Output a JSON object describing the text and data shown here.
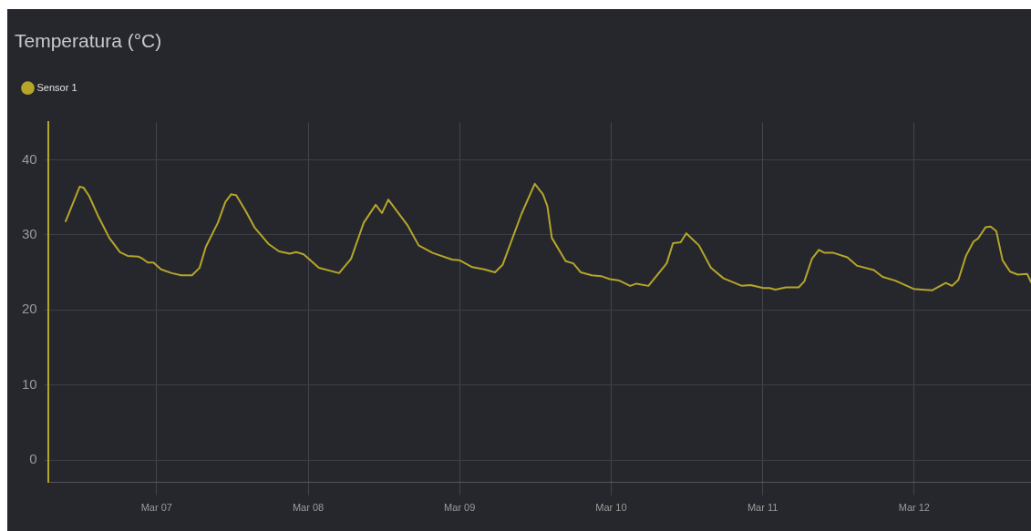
{
  "chart_data": {
    "type": "line",
    "title": "Temperatura (°C)",
    "x": [
      "--03-06T09:36",
      "--03-06T11:48",
      "--03-06T12:24",
      "--03-06T13:18",
      "--03-06T14:48",
      "--03-06T16:30",
      "--03-06T18:12",
      "--03-06T19:24",
      "--03-06T21:06",
      "--03-06T21:48",
      "--03-06T22:36",
      "--03-06T23:30",
      "--03-07T00:42",
      "--03-07T02:24",
      "--03-07T03:54",
      "--03-07T05:36",
      "--03-07T06:48",
      "--03-07T07:48",
      "--03-07T09:42",
      "--03-07T10:54",
      "--03-07T11:48",
      "--03-07T12:36",
      "--03-07T14:06",
      "--03-07T15:30",
      "--03-07T17:42",
      "--03-07T19:24",
      "--03-07T21:06",
      "--03-07T22:06",
      "--03-07T23:18",
      "--03-08T01:42",
      "--03-08T04:54",
      "--03-08T06:48",
      "--03-08T08:48",
      "--03-08T10:42",
      "--03-08T11:42",
      "--03-08T12:42",
      "--03-08T15:48",
      "--03-08T17:30",
      "--03-08T19:42",
      "--03-08T22:48",
      "--03-09T00:00",
      "--03-09T02:00",
      "--03-09T03:54",
      "--03-09T05:36",
      "--03-09T06:48",
      "--03-09T09:48",
      "--03-09T11:54",
      "--03-09T13:12",
      "--03-09T13:54",
      "--03-09T14:36",
      "--03-09T16:48",
      "--03-09T18:00",
      "--03-09T19:12",
      "--03-09T20:54",
      "--03-09T22:24",
      "--03-09T23:48",
      "--03-10T01:18",
      "--03-10T03:00",
      "--03-10T04:00",
      "--03-10T05:54",
      "--03-10T08:48",
      "--03-10T09:48",
      "--03-10T11:00",
      "--03-10T11:54",
      "--03-10T13:54",
      "--03-10T15:48",
      "--03-10T17:48",
      "--03-10T20:42",
      "--03-10T22:06",
      "--03-11T00:06",
      "--03-11T01:06",
      "--03-11T02:00",
      "--03-11T03:42",
      "--03-11T05:42",
      "--03-11T06:36",
      "--03-11T07:48",
      "--03-11T08:54",
      "--03-11T09:48",
      "--03-11T11:12",
      "--03-11T13:24",
      "--03-11T14:54",
      "--03-11T17:36",
      "--03-11T19:00",
      "--03-11T21:00",
      "--03-11T23:54",
      "--03-12T02:48",
      "--03-12T05:00",
      "--03-12T06:00",
      "--03-12T07:00",
      "--03-12T08:12",
      "--03-12T09:24",
      "--03-12T10:06",
      "--03-12T11:18",
      "--03-12T12:06",
      "--03-12T13:00",
      "--03-12T14:00",
      "--03-12T15:12",
      "--03-12T16:24",
      "--03-12T17:54",
      "--03-12T18:30"
    ],
    "series": [
      {
        "name": "Sensor 1",
        "color": "#b5a52a",
        "values": [
          31.8,
          36.4,
          36.3,
          35.2,
          32.4,
          29.6,
          27.7,
          27.2,
          27.1,
          26.8,
          26.3,
          26.3,
          25.4,
          24.9,
          24.6,
          24.6,
          25.6,
          28.4,
          31.6,
          34.4,
          35.4,
          35.3,
          33.2,
          31.0,
          28.8,
          27.8,
          27.5,
          27.7,
          27.4,
          25.6,
          24.9,
          26.8,
          31.6,
          34.0,
          32.9,
          34.7,
          31.2,
          28.6,
          27.6,
          26.7,
          26.6,
          25.7,
          25.4,
          25.0,
          26.0,
          32.8,
          36.8,
          35.4,
          33.8,
          29.6,
          26.5,
          26.2,
          25.0,
          24.6,
          24.5,
          24.1,
          23.9,
          23.2,
          23.5,
          23.2,
          26.2,
          28.9,
          29.0,
          30.2,
          28.6,
          25.6,
          24.2,
          23.2,
          23.3,
          22.9,
          22.9,
          22.7,
          23.0,
          23.0,
          23.8,
          26.8,
          28.0,
          27.6,
          27.6,
          27.0,
          25.9,
          25.3,
          24.4,
          23.9,
          22.8,
          22.6,
          23.6,
          23.2,
          24.0,
          27.2,
          29.1,
          29.5,
          31.0,
          31.1,
          30.5,
          26.6,
          25.1,
          24.7,
          24.8,
          23.7
        ]
      }
    ],
    "xlim": [
      "--03-06T06:48",
      "--03-12T18:30"
    ],
    "xticks": [
      {
        "value": "--03-07",
        "label": "Mar 07"
      },
      {
        "value": "--03-08",
        "label": "Mar 08"
      },
      {
        "value": "--03-09",
        "label": "Mar 09"
      },
      {
        "value": "--03-10",
        "label": "Mar 10"
      },
      {
        "value": "--03-11",
        "label": "Mar 11"
      },
      {
        "value": "--03-12",
        "label": "Mar 12"
      }
    ],
    "ylim": [
      -3,
      45
    ],
    "yticks": [
      0,
      10,
      20,
      30,
      40
    ],
    "grid": true,
    "legend": "top left",
    "marker": "none",
    "line_style": "solid"
  }
}
